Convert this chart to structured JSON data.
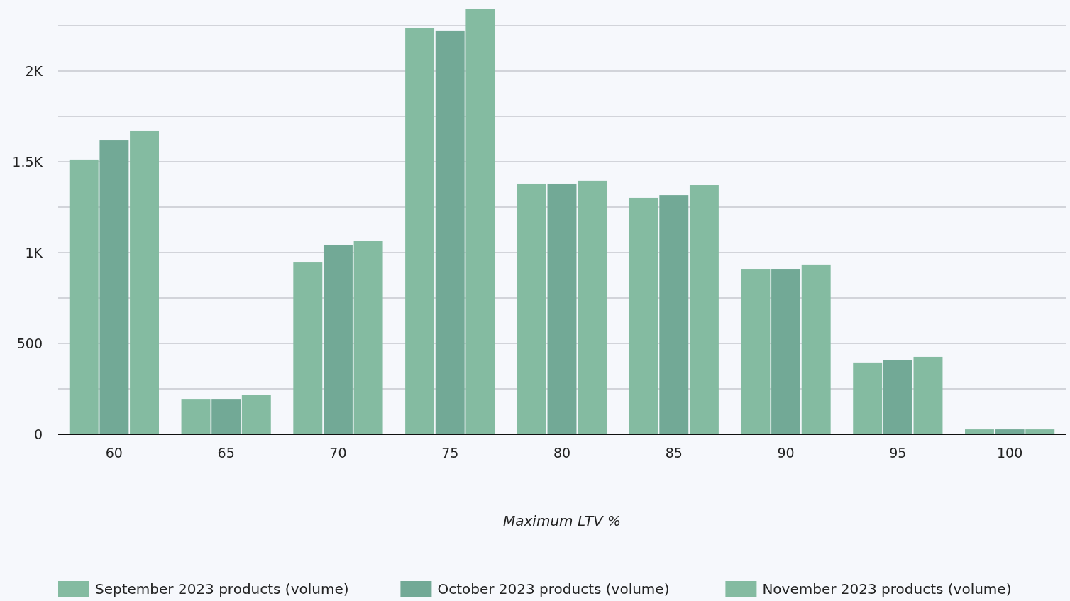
{
  "chart_data": {
    "type": "bar",
    "xlabel": "Maximum LTV %",
    "categories": [
      "60",
      "65",
      "70",
      "75",
      "80",
      "85",
      "90",
      "95",
      "100"
    ],
    "series": [
      {
        "name": "September 2023 products (volume)",
        "color": "#84bba1",
        "values": [
          1512,
          191,
          949,
          2238,
          1379,
          1301,
          910,
          395,
          27
        ]
      },
      {
        "name": "October 2023 products (volume)",
        "color": "#72a996",
        "values": [
          1617,
          191,
          1043,
          2223,
          1379,
          1316,
          910,
          410,
          27
        ]
      },
      {
        "name": "November 2023 products (volume)",
        "color": "#84bba1",
        "values": [
          1672,
          215,
          1066,
          2340,
          1395,
          1371,
          934,
          426,
          27
        ]
      }
    ],
    "ylim": [
      0,
      2350
    ],
    "yticks": [
      0,
      {
        "value": 250,
        "label": null
      },
      500,
      {
        "value": 750,
        "label": null
      },
      {
        "value": 1000,
        "label": "1K"
      },
      {
        "value": 1250,
        "label": null
      },
      {
        "value": 1500,
        "label": "1.5K"
      },
      {
        "value": 1750,
        "label": null
      },
      {
        "value": 2000,
        "label": "2K"
      },
      {
        "value": 2250,
        "label": null
      }
    ],
    "grid": "y",
    "legend": "bottom left"
  }
}
